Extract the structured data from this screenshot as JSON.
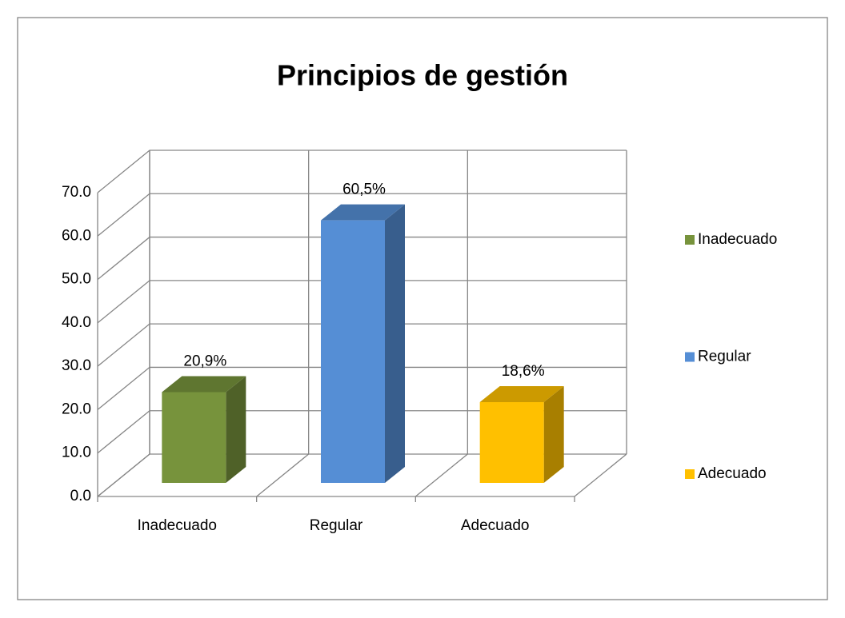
{
  "chart_data": {
    "type": "bar3d",
    "title": "Principios de gestión",
    "categories": [
      "Inadecuado",
      "Regular",
      "Adecuado"
    ],
    "values": [
      20.9,
      60.5,
      18.6
    ],
    "value_labels": [
      "20,9%",
      "60,5%",
      "18,6%"
    ],
    "colors": [
      "#77933c",
      "#558ed5",
      "#ffc000"
    ],
    "ylim": [
      0,
      70
    ],
    "yticks": [
      {
        "value": 0,
        "label": "0.0"
      },
      {
        "value": 10,
        "label": "10.0"
      },
      {
        "value": 20,
        "label": "20.0"
      },
      {
        "value": 30,
        "label": "30.0"
      },
      {
        "value": 40,
        "label": "40.0"
      },
      {
        "value": 50,
        "label": "50.0"
      },
      {
        "value": 60,
        "label": "60.0"
      },
      {
        "value": 70,
        "label": "70.0"
      }
    ],
    "grid": true,
    "legend": "right"
  }
}
